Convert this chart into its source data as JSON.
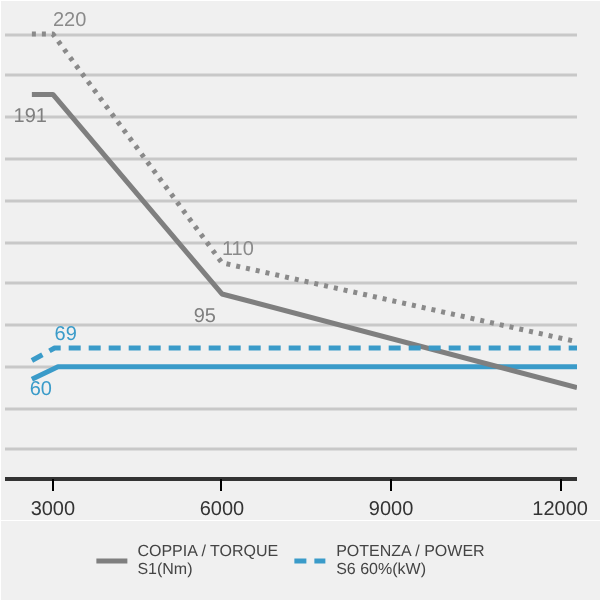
{
  "chart_data": {
    "type": "line",
    "xlim": [
      2150,
      12300
    ],
    "xticks": [
      3000,
      6000,
      9000,
      12000
    ],
    "ylim": [
      6,
      234
    ],
    "yticks": [
      {
        "value": 20,
        "label": null
      },
      {
        "value": 40,
        "label": null
      },
      {
        "value": 60,
        "label": null
      },
      {
        "value": 80,
        "label": null
      },
      {
        "value": 100,
        "label": null
      },
      {
        "value": 120,
        "label": null
      },
      {
        "value": 140,
        "label": null
      },
      {
        "value": 160,
        "label": null
      },
      {
        "value": 180,
        "label": null
      },
      {
        "value": 200,
        "label": null
      },
      {
        "value": 220,
        "label": null
      }
    ],
    "tick_labels": "x",
    "grid": "y",
    "legend": "bottom",
    "series": [
      {
        "color": "#3a9bc9",
        "line_style": "solid",
        "x": [
          2627,
          3090,
          12300
        ],
        "values": [
          54,
          60,
          60
        ],
        "value_labels": [
          null,
          "60",
          null
        ]
      },
      {
        "name": "COPPIA / TORQUE\nS1(Nm)",
        "color": "#7f7f7f",
        "line_style": "solid",
        "x": [
          2627,
          3000,
          6000,
          12300
        ],
        "values": [
          191,
          191,
          95,
          50
        ],
        "value_labels": [
          null,
          "191",
          "95",
          null
        ]
      },
      {
        "name": "POTENZA / POWER\nS6 60%(kW)",
        "color": "#3a9bc9",
        "line_style": "dashed",
        "x": [
          2627,
          3030,
          12300
        ],
        "values": [
          63,
          69,
          69
        ],
        "value_labels": [
          null,
          "69",
          null
        ]
      },
      {
        "color": "#8a8a8a",
        "line_style": "dotted",
        "x": [
          2627,
          3000,
          6000,
          12300
        ],
        "values": [
          220,
          220,
          110,
          72
        ],
        "value_labels": [
          null,
          "220",
          "110",
          null
        ]
      }
    ]
  }
}
